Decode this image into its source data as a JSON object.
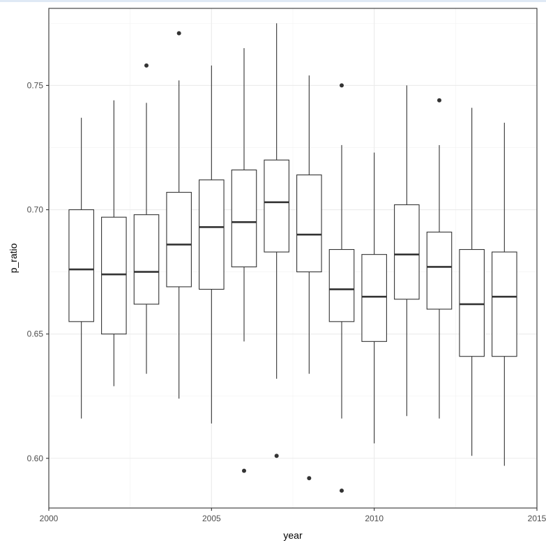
{
  "chart_data": {
    "type": "boxplot",
    "xlabel": "year",
    "ylabel": "p_ratio",
    "xlim": [
      2000,
      2015
    ],
    "ylim": [
      0.58,
      0.781
    ],
    "x_ticks": [
      2000,
      2005,
      2010,
      2015
    ],
    "x_tick_labels": [
      "2000",
      "2005",
      "2010",
      "2015"
    ],
    "y_ticks": [
      0.6,
      0.65,
      0.7,
      0.75
    ],
    "y_tick_labels": [
      "0.60",
      "0.65",
      "0.70",
      "0.75"
    ],
    "grid": true,
    "boxes": [
      {
        "x": 2001,
        "whisker_low": 0.616,
        "q1": 0.655,
        "median": 0.676,
        "q3": 0.7,
        "whisker_high": 0.737,
        "outliers": []
      },
      {
        "x": 2002,
        "whisker_low": 0.629,
        "q1": 0.65,
        "median": 0.674,
        "q3": 0.697,
        "whisker_high": 0.744,
        "outliers": []
      },
      {
        "x": 2003,
        "whisker_low": 0.634,
        "q1": 0.662,
        "median": 0.675,
        "q3": 0.698,
        "whisker_high": 0.743,
        "outliers": [
          0.758
        ]
      },
      {
        "x": 2004,
        "whisker_low": 0.624,
        "q1": 0.669,
        "median": 0.686,
        "q3": 0.707,
        "whisker_high": 0.752,
        "outliers": [
          0.771
        ]
      },
      {
        "x": 2005,
        "whisker_low": 0.614,
        "q1": 0.668,
        "median": 0.693,
        "q3": 0.712,
        "whisker_high": 0.758,
        "outliers": []
      },
      {
        "x": 2006,
        "whisker_low": 0.647,
        "q1": 0.677,
        "median": 0.695,
        "q3": 0.716,
        "whisker_high": 0.765,
        "outliers": [
          0.595
        ]
      },
      {
        "x": 2007,
        "whisker_low": 0.632,
        "q1": 0.683,
        "median": 0.703,
        "q3": 0.72,
        "whisker_high": 0.775,
        "outliers": [
          0.601
        ]
      },
      {
        "x": 2008,
        "whisker_low": 0.634,
        "q1": 0.675,
        "median": 0.69,
        "q3": 0.714,
        "whisker_high": 0.754,
        "outliers": [
          0.592
        ]
      },
      {
        "x": 2009,
        "whisker_low": 0.616,
        "q1": 0.655,
        "median": 0.668,
        "q3": 0.684,
        "whisker_high": 0.726,
        "outliers": [
          0.75,
          0.587
        ]
      },
      {
        "x": 2010,
        "whisker_low": 0.606,
        "q1": 0.647,
        "median": 0.665,
        "q3": 0.682,
        "whisker_high": 0.723,
        "outliers": []
      },
      {
        "x": 2011,
        "whisker_low": 0.617,
        "q1": 0.664,
        "median": 0.682,
        "q3": 0.702,
        "whisker_high": 0.75,
        "outliers": []
      },
      {
        "x": 2012,
        "whisker_low": 0.616,
        "q1": 0.66,
        "median": 0.677,
        "q3": 0.691,
        "whisker_high": 0.726,
        "outliers": [
          0.744
        ]
      },
      {
        "x": 2013,
        "whisker_low": 0.601,
        "q1": 0.641,
        "median": 0.662,
        "q3": 0.684,
        "whisker_high": 0.741,
        "outliers": []
      },
      {
        "x": 2014,
        "whisker_low": 0.597,
        "q1": 0.641,
        "median": 0.665,
        "q3": 0.683,
        "whisker_high": 0.735,
        "outliers": []
      }
    ]
  }
}
